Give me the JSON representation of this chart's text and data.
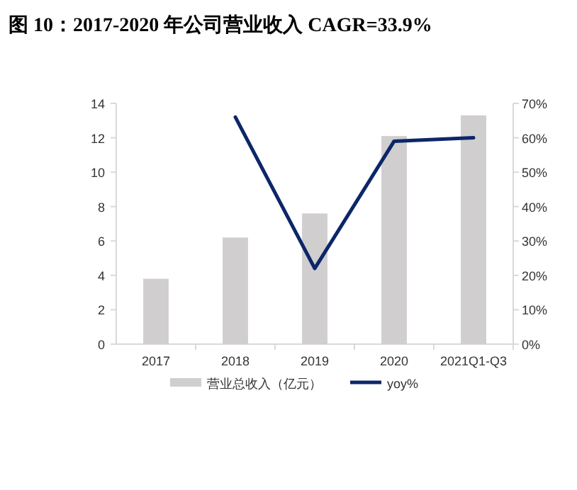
{
  "chart_data": {
    "type": "bar",
    "title": "图 10：2017-2020 年公司营业收入 CAGR=33.9%",
    "categories": [
      "2017",
      "2018",
      "2019",
      "2020",
      "2021Q1-Q3"
    ],
    "series": [
      {
        "name": "营业总收入（亿元）",
        "color": "#d0cece",
        "values": [
          3.8,
          6.2,
          7.6,
          12.1,
          13.3
        ]
      },
      {
        "name": "yoy%",
        "type": "line",
        "axis": "y2",
        "color": "#0c2768",
        "line_style": "solid",
        "values": [
          null,
          66,
          22,
          59,
          60
        ]
      }
    ],
    "ylim": [
      0,
      14
    ],
    "yticks": [
      0,
      2,
      4,
      6,
      8,
      10,
      12,
      14
    ],
    "y2lim": [
      0,
      70
    ],
    "y2ticks": [
      {
        "value": 0,
        "label": "0%"
      },
      {
        "value": 10,
        "label": "10%"
      },
      {
        "value": 20,
        "label": "20%"
      },
      {
        "value": 30,
        "label": "30%"
      },
      {
        "value": 40,
        "label": "40%"
      },
      {
        "value": 50,
        "label": "50%"
      },
      {
        "value": 60,
        "label": "60%"
      },
      {
        "value": 70,
        "label": "70%"
      }
    ],
    "legend": "bottom",
    "grid": false,
    "marker": "none"
  }
}
